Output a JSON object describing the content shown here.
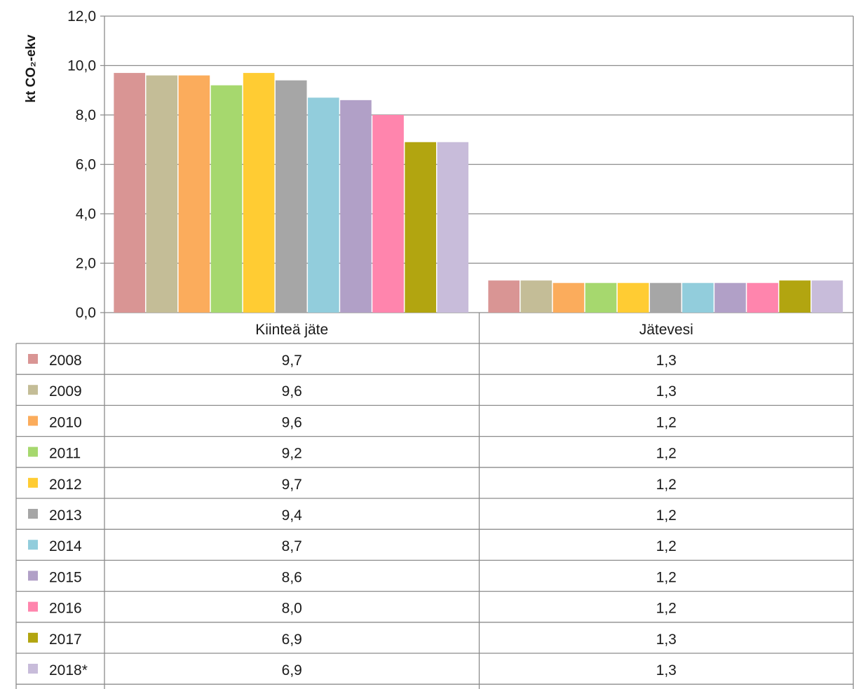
{
  "chart_data": {
    "type": "bar",
    "ylabel": "kt CO₂-ekv",
    "ylim": [
      0,
      12
    ],
    "yticks": [
      "0,0",
      "2,0",
      "4,0",
      "6,0",
      "8,0",
      "10,0",
      "12,0"
    ],
    "grid": true,
    "legend": "data-table",
    "categories": [
      "Kiinteä jäte",
      "Jätevesi"
    ],
    "series": [
      {
        "name": "2008",
        "color": "#d99594",
        "values": [
          9.7,
          1.3
        ],
        "labels": [
          "9,7",
          "1,3"
        ]
      },
      {
        "name": "2009",
        "color": "#c4bd97",
        "values": [
          9.6,
          1.3
        ],
        "labels": [
          "9,6",
          "1,3"
        ]
      },
      {
        "name": "2010",
        "color": "#fbac5c",
        "values": [
          9.6,
          1.2
        ],
        "labels": [
          "9,6",
          "1,2"
        ]
      },
      {
        "name": "2011",
        "color": "#a6d86e",
        "values": [
          9.2,
          1.2
        ],
        "labels": [
          "9,2",
          "1,2"
        ]
      },
      {
        "name": "2012",
        "color": "#ffcc33",
        "values": [
          9.7,
          1.2
        ],
        "labels": [
          "9,7",
          "1,2"
        ]
      },
      {
        "name": "2013",
        "color": "#a6a6a6",
        "values": [
          9.4,
          1.2
        ],
        "labels": [
          "9,4",
          "1,2"
        ]
      },
      {
        "name": "2014",
        "color": "#92cddc",
        "values": [
          8.7,
          1.2
        ],
        "labels": [
          "8,7",
          "1,2"
        ]
      },
      {
        "name": "2015",
        "color": "#b1a0c7",
        "values": [
          8.6,
          1.2
        ],
        "labels": [
          "8,6",
          "1,2"
        ]
      },
      {
        "name": "2016",
        "color": "#ff85ad",
        "values": [
          8.0,
          1.2
        ],
        "labels": [
          "8,0",
          "1,2"
        ]
      },
      {
        "name": "2017",
        "color": "#b2a510",
        "values": [
          6.9,
          1.3
        ],
        "labels": [
          "6,9",
          "1,3"
        ]
      },
      {
        "name": "2018*",
        "color": "#c8bcda",
        "values": [
          6.9,
          1.3
        ],
        "labels": [
          "6,9",
          "1,3"
        ]
      }
    ]
  }
}
